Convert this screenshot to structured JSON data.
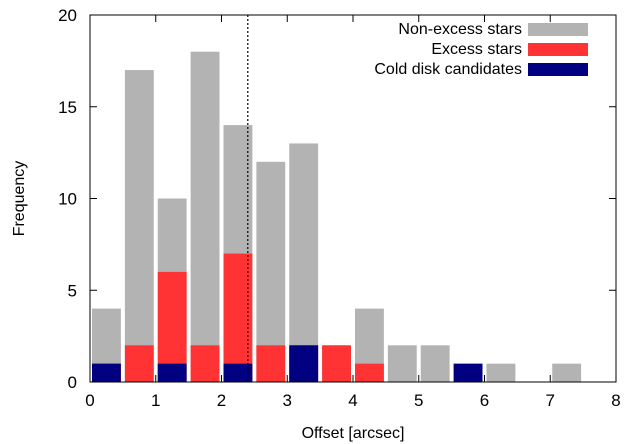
{
  "chart_data": {
    "type": "bar",
    "title": "",
    "xlabel": "Offset [arcsec]",
    "ylabel": "Frequency",
    "xlim": [
      0,
      8
    ],
    "ylim": [
      0,
      20
    ],
    "xticks": [
      0,
      1,
      2,
      3,
      4,
      5,
      6,
      7,
      8
    ],
    "yticks": [
      0,
      5,
      10,
      15,
      20
    ],
    "bin_width": 0.5,
    "bin_starts": [
      0,
      0.5,
      1.0,
      1.5,
      2.0,
      2.5,
      3.0,
      3.5,
      4.0,
      4.5,
      5.0,
      5.5,
      6.0,
      6.5,
      7.0,
      7.5
    ],
    "grid": false,
    "legend_position": "top-right",
    "reference_line": {
      "x": 2.4,
      "style": "dotted"
    },
    "series": [
      {
        "name": "Non-excess stars",
        "color": "#b3b3b3",
        "values": [
          4,
          17,
          10,
          18,
          14,
          12,
          13,
          2,
          4,
          2,
          2,
          1,
          1,
          0,
          1,
          0
        ]
      },
      {
        "name": "Excess stars",
        "color": "#ff3333",
        "values": [
          1,
          2,
          6,
          2,
          7,
          2,
          2,
          2,
          1,
          0,
          0,
          0,
          0,
          0,
          0,
          0
        ]
      },
      {
        "name": "Cold disk candidates",
        "color": "#000080",
        "values": [
          1,
          0,
          1,
          0,
          1,
          0,
          2,
          0,
          0,
          0,
          0,
          1,
          0,
          0,
          0,
          0
        ]
      }
    ]
  }
}
